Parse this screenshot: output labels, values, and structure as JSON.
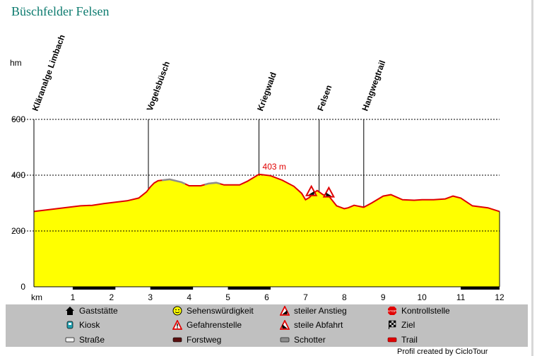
{
  "title": "Büschfelder Felsen",
  "credit": "Profil created by CicloTour",
  "colors": {
    "fill": "#ffff00",
    "line": "#e00000",
    "gravel": "#8e8e8e",
    "title": "#0b7a6e",
    "legend_bg": "#c0c0c0"
  },
  "chart_data": {
    "type": "area",
    "title": "",
    "xlabel": "km",
    "ylabel": "hm",
    "xlim": [
      0,
      12
    ],
    "ylim": [
      0,
      600
    ],
    "x_ticks": [
      1,
      2,
      3,
      4,
      5,
      6,
      7,
      8,
      9,
      10,
      11,
      12
    ],
    "y_ticks": [
      0,
      200,
      400,
      600
    ],
    "gridlines_y": [
      200,
      400,
      600
    ],
    "max_label": {
      "text": "403 m",
      "x": 5.8,
      "y": 403
    },
    "profile": [
      [
        0,
        270
      ],
      [
        0.3,
        275
      ],
      [
        0.6,
        280
      ],
      [
        0.9,
        285
      ],
      [
        1.2,
        290
      ],
      [
        1.5,
        292
      ],
      [
        1.8,
        298
      ],
      [
        2.1,
        303
      ],
      [
        2.4,
        308
      ],
      [
        2.7,
        318
      ],
      [
        2.9,
        340
      ],
      [
        3.0,
        358
      ],
      [
        3.1,
        372
      ],
      [
        3.2,
        380
      ],
      [
        3.5,
        385
      ],
      [
        3.8,
        375
      ],
      [
        4.0,
        362
      ],
      [
        4.3,
        362
      ],
      [
        4.5,
        370
      ],
      [
        4.7,
        373
      ],
      [
        4.9,
        365
      ],
      [
        5.3,
        365
      ],
      [
        5.5,
        378
      ],
      [
        5.8,
        403
      ],
      [
        6.1,
        398
      ],
      [
        6.4,
        382
      ],
      [
        6.7,
        360
      ],
      [
        6.9,
        335
      ],
      [
        7.0,
        312
      ],
      [
        7.1,
        320
      ],
      [
        7.2,
        335
      ],
      [
        7.3,
        345
      ],
      [
        7.45,
        330
      ],
      [
        7.6,
        325
      ],
      [
        7.8,
        290
      ],
      [
        8.0,
        280
      ],
      [
        8.1,
        283
      ],
      [
        8.25,
        292
      ],
      [
        8.5,
        285
      ],
      [
        8.7,
        300
      ],
      [
        9.0,
        325
      ],
      [
        9.2,
        330
      ],
      [
        9.5,
        312
      ],
      [
        9.8,
        310
      ],
      [
        10.0,
        312
      ],
      [
        10.3,
        312
      ],
      [
        10.6,
        315
      ],
      [
        10.8,
        325
      ],
      [
        11.0,
        318
      ],
      [
        11.3,
        290
      ],
      [
        11.7,
        283
      ],
      [
        12.0,
        270
      ]
    ],
    "gravel_sections": [
      [
        3.3,
        3.9
      ],
      [
        4.4,
        4.8
      ]
    ],
    "waypoints": [
      {
        "name": "Kläranalge Limbach",
        "x": 0
      },
      {
        "name": "Vogelsbüsch",
        "x": 2.95
      },
      {
        "name": "Kriegwald",
        "x": 5.8
      },
      {
        "name": "Felsen",
        "x": 7.35
      },
      {
        "name": "Hangwegtrail",
        "x": 8.5
      }
    ],
    "markers": [
      {
        "type": "steiler-anstieg",
        "x": 7.15,
        "y": 340
      },
      {
        "type": "steile-abfahrt",
        "x": 7.6,
        "y": 335
      }
    ],
    "surface_bar": [
      [
        1.0,
        2.1
      ],
      [
        3.0,
        4.1
      ],
      [
        5.0,
        6.1
      ],
      [
        11.0,
        12.0
      ]
    ],
    "legend": [
      {
        "label": "Gaststätte",
        "icon": "house-icon"
      },
      {
        "label": "Sehenswürdigkeit",
        "icon": "smiley-icon"
      },
      {
        "label": "steiler Anstieg",
        "icon": "steep-climb-icon"
      },
      {
        "label": "Kontrollstelle",
        "icon": "stop-icon"
      },
      {
        "label": "Kiosk",
        "icon": "kiosk-icon"
      },
      {
        "label": "Gefahrenstelle",
        "icon": "danger-icon"
      },
      {
        "label": "steile Abfahrt",
        "icon": "steep-descent-icon"
      },
      {
        "label": "Ziel",
        "icon": "finish-flag-icon"
      },
      {
        "label": "Straße",
        "icon": "road-icon"
      },
      {
        "label": "Forstweg",
        "icon": "forest-road-icon"
      },
      {
        "label": "Schotter",
        "icon": "gravel-icon"
      },
      {
        "label": "Trail",
        "icon": "trail-icon"
      }
    ]
  }
}
